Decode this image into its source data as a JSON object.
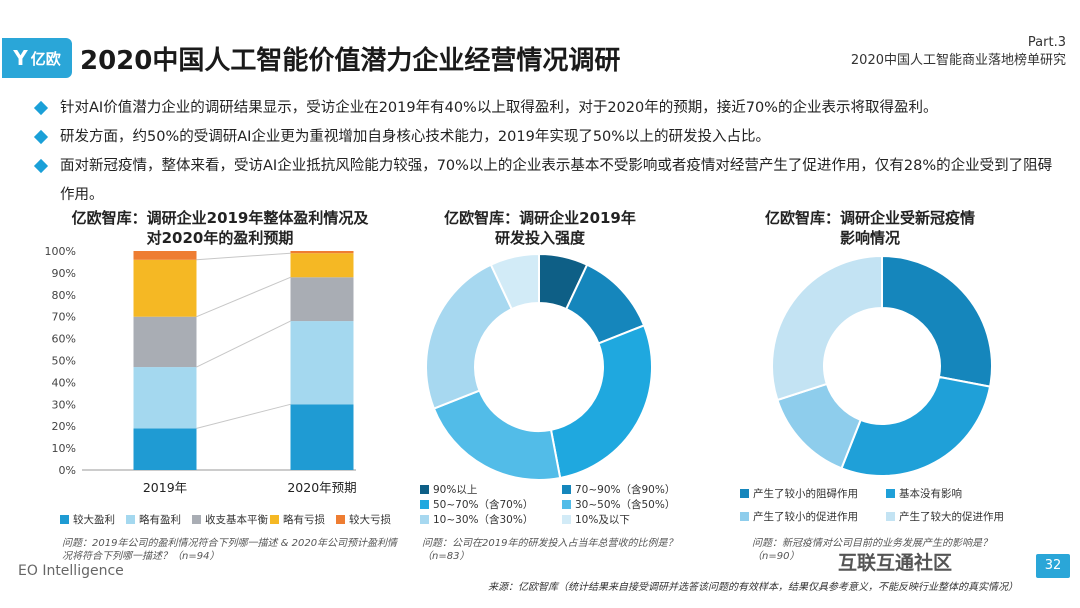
{
  "header": {
    "logo_mark": "Y",
    "logo_text": "亿欧",
    "title": "2020中国人工智能价值潜力企业经营情况调研",
    "part": "Part.3",
    "subtitle": "2020中国人工智能商业落地榜单研究"
  },
  "bullets": [
    "针对AI价值潜力企业的调研结果显示，受访企业在2019年有40%以上取得盈利，对于2020年的预期，接近70%的企业表示将取得盈利。",
    "研发方面，约50%的受调研AI企业更为重视增加自身核心技术能力，2019年实现了50%以上的研发投入占比。",
    "面对新冠疫情，整体来看，受访AI企业抵抗风险能力较强，70%以上的企业表示基本不受影响或者疫情对经营产生了促进作用，仅有28%的企业受到了阻碍作用。"
  ],
  "charts_text": {
    "bar_title_1": "亿欧智库：调研企业2019年整体盈利情况及",
    "bar_title_2": "对2020年的盈利预期",
    "donut1_title_1": "亿欧智库：调研企业2019年",
    "donut1_title_2": "研发投入强度",
    "donut2_title_1": "亿欧智库：调研企业受新冠疫情",
    "donut2_title_2": "影响情况",
    "bar_note": "问题：2019年公司的盈利情况符合下列哪一描述 & 2020年公司预计盈利情况将符合下列哪一描述？（n=94）",
    "donut1_note_1": "问题：公司在2019年的研发投入占当年总营收的比例是？",
    "donut1_note_2": "（n=83）",
    "donut2_note_1": "问题：新冠疫情对公司目前的业务发展产生的影响是？",
    "donut2_note_2": "（n=90）"
  },
  "chart_data": [
    {
      "type": "bar",
      "stacked": true,
      "categories": [
        "2019年",
        "2020年预期"
      ],
      "series": [
        {
          "name": "较大盈利",
          "values": [
            19,
            30
          ],
          "color": "#1f9bd3"
        },
        {
          "name": "略有盈利",
          "values": [
            28,
            38
          ],
          "color": "#a4d8ef"
        },
        {
          "name": "收支基本平衡",
          "values": [
            23,
            20
          ],
          "color": "#a9adb4"
        },
        {
          "name": "略有亏损",
          "values": [
            26,
            11
          ],
          "color": "#f5b824"
        },
        {
          "name": "较大亏损",
          "values": [
            4,
            1
          ],
          "color": "#ee7d32"
        }
      ],
      "ylim": [
        0,
        100
      ],
      "yticks": [
        "0%",
        "10%",
        "20%",
        "30%",
        "40%",
        "50%",
        "60%",
        "70%",
        "80%",
        "90%",
        "100%"
      ]
    },
    {
      "type": "pie",
      "donut": true,
      "labels": [
        "90%以上",
        "70~90%（含90%）",
        "50~70%（含70%）",
        "30~50%（含50%）",
        "10~30%（含30%）",
        "10%及以下"
      ],
      "values": [
        7,
        12,
        28,
        22,
        24,
        7
      ],
      "colors": [
        "#0e5f86",
        "#1586bc",
        "#1fa8df",
        "#52bce8",
        "#a7d8f0",
        "#d2ebf7"
      ]
    },
    {
      "type": "pie",
      "donut": true,
      "labels": [
        "产生了较小的阻碍作用",
        "基本没有影响",
        "产生了较小的促进作用",
        "产生了较大的促进作用"
      ],
      "values": [
        28,
        28,
        14,
        30
      ],
      "colors": [
        "#1586bc",
        "#1fa0d8",
        "#8ecdec",
        "#c3e3f3"
      ]
    }
  ],
  "footer": {
    "brand": "EO Intelligence",
    "source": "来源：亿欧智库（统计结果来自接受调研并选答该问题的有效样本，结果仅具参考意义，不能反映行业整体的真实情况）",
    "watermark": "互联互通社区",
    "page": "32"
  }
}
